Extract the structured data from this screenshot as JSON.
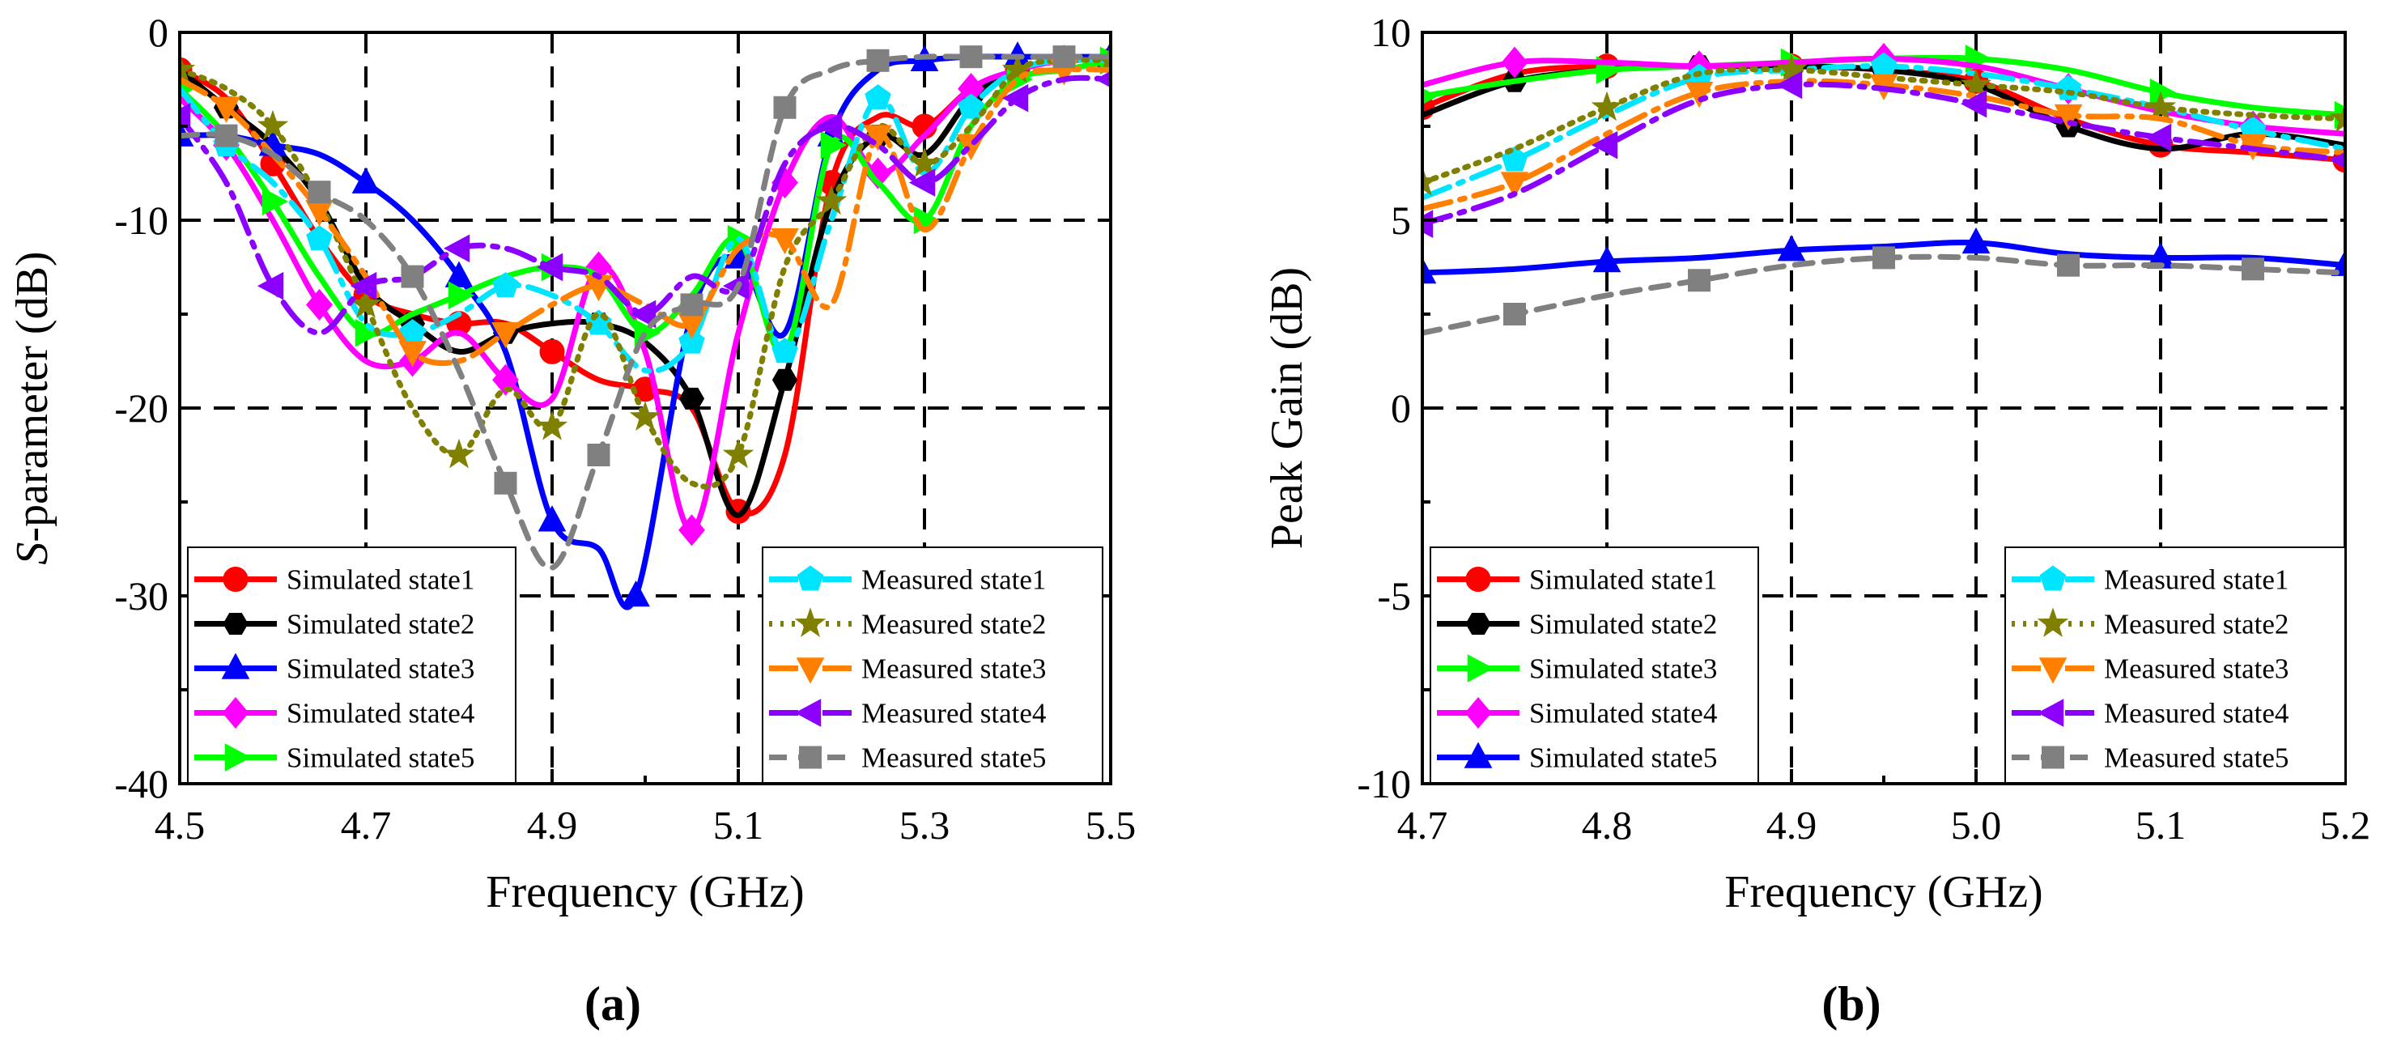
{
  "chart_data": [
    {
      "type": "line",
      "panel_label": "(a)",
      "xlabel": "Frequency (GHz)",
      "ylabel": "S-parameter (dB)",
      "ylabel_italic": "S",
      "ylabel_rest": "-parameter (dB)",
      "xlim": [
        4.5,
        5.5
      ],
      "ylim": [
        -40,
        0
      ],
      "xticks": [
        4.5,
        4.7,
        4.9,
        5.1,
        5.3,
        5.5
      ],
      "xtick_labels": [
        "4.5",
        "4.7",
        "4.9",
        "5.1",
        "5.3",
        "5.5"
      ],
      "yticks": [
        -40,
        -30,
        -20,
        -10,
        0
      ],
      "ytick_labels": [
        "-40",
        "-30",
        "-20",
        "-10",
        "0"
      ],
      "grid": "dashed",
      "legend_left": [
        "Simulated state1",
        "Simulated state2",
        "Simulated state3",
        "Simulated state4",
        "Simulated state5"
      ],
      "legend_right": [
        "Measured state1",
        "Measured state2",
        "Measured state3",
        "Measured state4",
        "Measured state5"
      ],
      "series": [
        {
          "name": "Simulated state1",
          "color": "#ff0000",
          "marker": "circle",
          "dash": "solid",
          "x": [
            4.5,
            4.55,
            4.6,
            4.65,
            4.7,
            4.75,
            4.8,
            4.85,
            4.9,
            4.95,
            5.0,
            5.05,
            5.1,
            5.15,
            5.2,
            5.25,
            5.3,
            5.35,
            5.4,
            5.45,
            5.5
          ],
          "y": [
            -2,
            -3.5,
            -7,
            -11,
            -14,
            -15,
            -15.5,
            -15.5,
            -17,
            -18.5,
            -19,
            -20,
            -25.5,
            -22.5,
            -8,
            -4.5,
            -5,
            -3,
            -2,
            -1.5,
            -1.5
          ]
        },
        {
          "name": "Simulated state2",
          "color": "#000000",
          "marker": "hexagon",
          "dash": "solid",
          "x": [
            4.5,
            4.55,
            4.6,
            4.65,
            4.7,
            4.75,
            4.8,
            4.85,
            4.9,
            4.95,
            5.0,
            5.05,
            5.1,
            5.15,
            5.2,
            5.25,
            5.3,
            5.35,
            5.4,
            5.45,
            5.5
          ],
          "y": [
            -2,
            -4,
            -6,
            -9,
            -13.5,
            -15.5,
            -17,
            -16,
            -15.5,
            -15.5,
            -16.5,
            -19.5,
            -25.7,
            -18.5,
            -9,
            -5.5,
            -6.5,
            -3.5,
            -2,
            -1.5,
            -1.5
          ]
        },
        {
          "name": "Simulated state3",
          "color": "#0000ff",
          "marker": "triangle-up",
          "dash": "solid",
          "x": [
            4.5,
            4.55,
            4.6,
            4.65,
            4.7,
            4.75,
            4.8,
            4.85,
            4.9,
            4.95,
            4.99,
            5.05,
            5.1,
            5.15,
            5.2,
            5.25,
            5.3,
            5.35,
            5.4,
            5.45,
            5.5
          ],
          "y": [
            -5.5,
            -5.5,
            -6,
            -6.5,
            -8,
            -10,
            -13,
            -17,
            -26,
            -27.5,
            -30,
            -15,
            -12,
            -16,
            -5.5,
            -2,
            -1.5,
            -1.3,
            -1.3,
            -1.3,
            -1.3
          ]
        },
        {
          "name": "Simulated state4",
          "color": "#ff00ff",
          "marker": "diamond",
          "dash": "solid",
          "x": [
            4.5,
            4.55,
            4.6,
            4.65,
            4.7,
            4.75,
            4.8,
            4.85,
            4.9,
            4.95,
            5.0,
            5.05,
            5.1,
            5.15,
            5.2,
            5.25,
            5.3,
            5.35,
            5.4,
            5.45,
            5.5
          ],
          "y": [
            -3.5,
            -6,
            -10,
            -14.5,
            -17.5,
            -17.5,
            -16,
            -18.5,
            -19.5,
            -12.5,
            -17,
            -26.5,
            -16,
            -8,
            -4.5,
            -7.5,
            -5.5,
            -3,
            -2,
            -1.5,
            -1.5
          ]
        },
        {
          "name": "Simulated state5",
          "color": "#00ff00",
          "marker": "triangle-right",
          "dash": "solid",
          "x": [
            4.5,
            4.55,
            4.6,
            4.65,
            4.7,
            4.75,
            4.8,
            4.85,
            4.9,
            4.95,
            5.0,
            5.05,
            5.1,
            5.15,
            5.2,
            5.25,
            5.3,
            5.35,
            5.4,
            5.45,
            5.5
          ],
          "y": [
            -3,
            -5.5,
            -9,
            -13,
            -16,
            -15,
            -14,
            -13,
            -12.5,
            -13,
            -16,
            -14,
            -11,
            -17,
            -6,
            -8,
            -10,
            -5,
            -2.5,
            -2,
            -1.5
          ]
        },
        {
          "name": "Measured state1",
          "color": "#00e5ff",
          "marker": "pentagon",
          "dash": "dashdot",
          "x": [
            4.5,
            4.55,
            4.6,
            4.65,
            4.7,
            4.75,
            4.8,
            4.85,
            4.9,
            4.95,
            5.0,
            5.05,
            5.1,
            5.15,
            5.2,
            5.25,
            5.3,
            5.35,
            5.4,
            5.45,
            5.5
          ],
          "y": [
            -3,
            -6,
            -8,
            -11,
            -15.5,
            -16,
            -15,
            -13.5,
            -14,
            -15.5,
            -18,
            -16.5,
            -11,
            -17,
            -10,
            -3.5,
            -7.5,
            -4,
            -2,
            -1.5,
            -1.5
          ]
        },
        {
          "name": "Measured state2",
          "color": "#808000",
          "marker": "star",
          "dash": "dotted",
          "x": [
            4.5,
            4.55,
            4.6,
            4.65,
            4.7,
            4.75,
            4.8,
            4.85,
            4.9,
            4.95,
            5.0,
            5.05,
            5.1,
            5.15,
            5.2,
            5.25,
            5.3,
            5.35,
            5.4,
            5.45,
            5.5
          ],
          "y": [
            -2,
            -3,
            -5,
            -9,
            -14.5,
            -20,
            -22.5,
            -19,
            -21,
            -15,
            -20.5,
            -24,
            -22.5,
            -12.5,
            -9,
            -5,
            -7,
            -5,
            -2,
            -1.5,
            -1.5
          ]
        },
        {
          "name": "Measured state3",
          "color": "#ff8000",
          "marker": "triangle-down",
          "dash": "dashdot",
          "x": [
            4.5,
            4.55,
            4.6,
            4.65,
            4.7,
            4.75,
            4.8,
            4.85,
            4.9,
            4.95,
            5.0,
            5.05,
            5.1,
            5.15,
            5.2,
            5.25,
            5.3,
            5.35,
            5.4,
            5.45,
            5.5
          ],
          "y": [
            -2.5,
            -4,
            -6.5,
            -9.5,
            -13,
            -17,
            -17.5,
            -16,
            -14.5,
            -13.5,
            -14.5,
            -15.5,
            -11.5,
            -11,
            -14.5,
            -5.5,
            -10.5,
            -6,
            -2.5,
            -2,
            -2
          ]
        },
        {
          "name": "Measured state4",
          "color": "#8b00ff",
          "marker": "triangle-left",
          "dash": "dashdot",
          "x": [
            4.5,
            4.55,
            4.6,
            4.65,
            4.7,
            4.75,
            4.8,
            4.85,
            4.9,
            4.95,
            5.0,
            5.05,
            5.1,
            5.15,
            5.2,
            5.25,
            5.3,
            5.35,
            5.4,
            5.45,
            5.5
          ],
          "y": [
            -4.5,
            -8,
            -13.5,
            -16,
            -13.5,
            -13,
            -11.5,
            -11.5,
            -12.5,
            -13,
            -15,
            -13,
            -13.5,
            -7,
            -5,
            -6,
            -8,
            -6,
            -3.5,
            -2.5,
            -2.5
          ]
        },
        {
          "name": "Measured state5",
          "color": "#808080",
          "marker": "square",
          "dash": "dashed",
          "x": [
            4.5,
            4.55,
            4.6,
            4.65,
            4.7,
            4.75,
            4.8,
            4.85,
            4.9,
            4.95,
            5.0,
            5.05,
            5.1,
            5.15,
            5.2,
            5.25,
            5.3,
            5.35,
            5.4,
            5.45,
            5.5
          ],
          "y": [
            -5.5,
            -5.5,
            -6.5,
            -8.5,
            -10,
            -13,
            -18,
            -24,
            -28.5,
            -22.5,
            -16,
            -14.5,
            -13.5,
            -4,
            -2,
            -1.5,
            -1.3,
            -1.3,
            -1.3,
            -1.3,
            -1.3
          ]
        }
      ]
    },
    {
      "type": "line",
      "panel_label": "(b)",
      "xlabel": "Frequency (GHz)",
      "ylabel": "Peak Gain (dB)",
      "xlim": [
        4.7,
        5.2
      ],
      "ylim": [
        -10,
        10
      ],
      "xticks": [
        4.7,
        4.8,
        4.9,
        5.0,
        5.1,
        5.2
      ],
      "xtick_labels": [
        "4.7",
        "4.8",
        "4.9",
        "5.0",
        "5.1",
        "5.2"
      ],
      "yticks": [
        -10,
        -5,
        0,
        5,
        10
      ],
      "ytick_labels": [
        "-10",
        "-5",
        "0",
        "5",
        "10"
      ],
      "grid": "dashed",
      "legend_left": [
        "Simulated state1",
        "Simulated state2",
        "Simulated state3",
        "Simulated state4",
        "Simulated state5"
      ],
      "legend_right": [
        "Measured state1",
        "Measured state2",
        "Measured state3",
        "Measured state4",
        "Measured state5"
      ],
      "series": [
        {
          "name": "Simulated state1",
          "color": "#ff0000",
          "marker": "circle",
          "dash": "solid",
          "x": [
            4.7,
            4.75,
            4.8,
            4.85,
            4.9,
            4.95,
            5.0,
            5.05,
            5.1,
            5.15,
            5.2
          ],
          "y": [
            8.0,
            8.9,
            9.1,
            9.1,
            9.1,
            9.0,
            8.7,
            7.7,
            7.0,
            6.8,
            6.6
          ]
        },
        {
          "name": "Simulated state2",
          "color": "#000000",
          "marker": "hexagon",
          "dash": "solid",
          "x": [
            4.7,
            4.75,
            4.8,
            4.85,
            4.9,
            4.95,
            5.0,
            5.05,
            5.1,
            5.15,
            5.2
          ],
          "y": [
            7.8,
            8.7,
            9.0,
            9.1,
            9.1,
            9.0,
            8.6,
            7.5,
            6.9,
            7.3,
            7.0
          ]
        },
        {
          "name": "Simulated state3",
          "color": "#00ff00",
          "marker": "triangle-right",
          "dash": "solid",
          "x": [
            4.7,
            4.75,
            4.8,
            4.85,
            4.9,
            4.95,
            5.0,
            5.05,
            5.1,
            5.15,
            5.2
          ],
          "y": [
            8.3,
            8.7,
            9.0,
            9.1,
            9.2,
            9.3,
            9.3,
            9.0,
            8.4,
            8.0,
            7.8
          ]
        },
        {
          "name": "Simulated state4",
          "color": "#ff00ff",
          "marker": "diamond",
          "dash": "solid",
          "x": [
            4.7,
            4.75,
            4.8,
            4.85,
            4.9,
            4.95,
            5.0,
            5.05,
            5.1,
            5.15,
            5.2
          ],
          "y": [
            8.6,
            9.2,
            9.2,
            9.1,
            9.2,
            9.3,
            9.1,
            8.5,
            7.9,
            7.5,
            7.3
          ]
        },
        {
          "name": "Simulated state5",
          "color": "#0000ff",
          "marker": "triangle-up",
          "dash": "solid",
          "x": [
            4.7,
            4.75,
            4.8,
            4.85,
            4.9,
            4.95,
            5.0,
            5.05,
            5.1,
            5.15,
            5.2
          ],
          "y": [
            3.6,
            3.7,
            3.9,
            4.0,
            4.2,
            4.3,
            4.4,
            4.1,
            4.0,
            4.0,
            3.8
          ]
        },
        {
          "name": "Measured state1",
          "color": "#00e5ff",
          "marker": "pentagon",
          "dash": "dashdot",
          "x": [
            4.7,
            4.75,
            4.8,
            4.85,
            4.9,
            4.95,
            5.0,
            5.05,
            5.1,
            5.15,
            5.2
          ],
          "y": [
            5.6,
            6.6,
            7.8,
            8.8,
            9.0,
            9.1,
            8.9,
            8.5,
            8.0,
            7.4,
            6.9
          ]
        },
        {
          "name": "Measured state2",
          "color": "#808000",
          "marker": "star",
          "dash": "dotted",
          "x": [
            4.7,
            4.75,
            4.8,
            4.85,
            4.9,
            4.95,
            5.0,
            5.05,
            5.1,
            5.15,
            5.2
          ],
          "y": [
            6.0,
            6.9,
            8.0,
            8.9,
            9.0,
            8.8,
            8.6,
            8.4,
            8.0,
            7.8,
            7.7
          ]
        },
        {
          "name": "Measured state3",
          "color": "#ff8000",
          "marker": "triangle-down",
          "dash": "dashdot",
          "x": [
            4.7,
            4.75,
            4.8,
            4.85,
            4.9,
            4.95,
            5.0,
            5.05,
            5.1,
            5.15,
            5.2
          ],
          "y": [
            5.3,
            6.0,
            7.3,
            8.4,
            8.7,
            8.6,
            8.3,
            7.8,
            7.7,
            7.0,
            6.8
          ]
        },
        {
          "name": "Measured state4",
          "color": "#8b00ff",
          "marker": "triangle-left",
          "dash": "dashdot",
          "x": [
            4.7,
            4.75,
            4.8,
            4.85,
            4.9,
            4.95,
            5.0,
            5.05,
            5.1,
            5.15,
            5.2
          ],
          "y": [
            4.9,
            5.7,
            7.0,
            8.2,
            8.6,
            8.5,
            8.1,
            7.6,
            7.2,
            6.9,
            6.6
          ]
        },
        {
          "name": "Measured state5",
          "color": "#808080",
          "marker": "square",
          "dash": "dashed",
          "x": [
            4.7,
            4.75,
            4.8,
            4.85,
            4.9,
            4.95,
            5.0,
            5.05,
            5.1,
            5.15,
            5.2
          ],
          "y": [
            2.0,
            2.5,
            3.0,
            3.4,
            3.8,
            4.0,
            4.0,
            3.8,
            3.8,
            3.7,
            3.6
          ]
        }
      ]
    }
  ]
}
